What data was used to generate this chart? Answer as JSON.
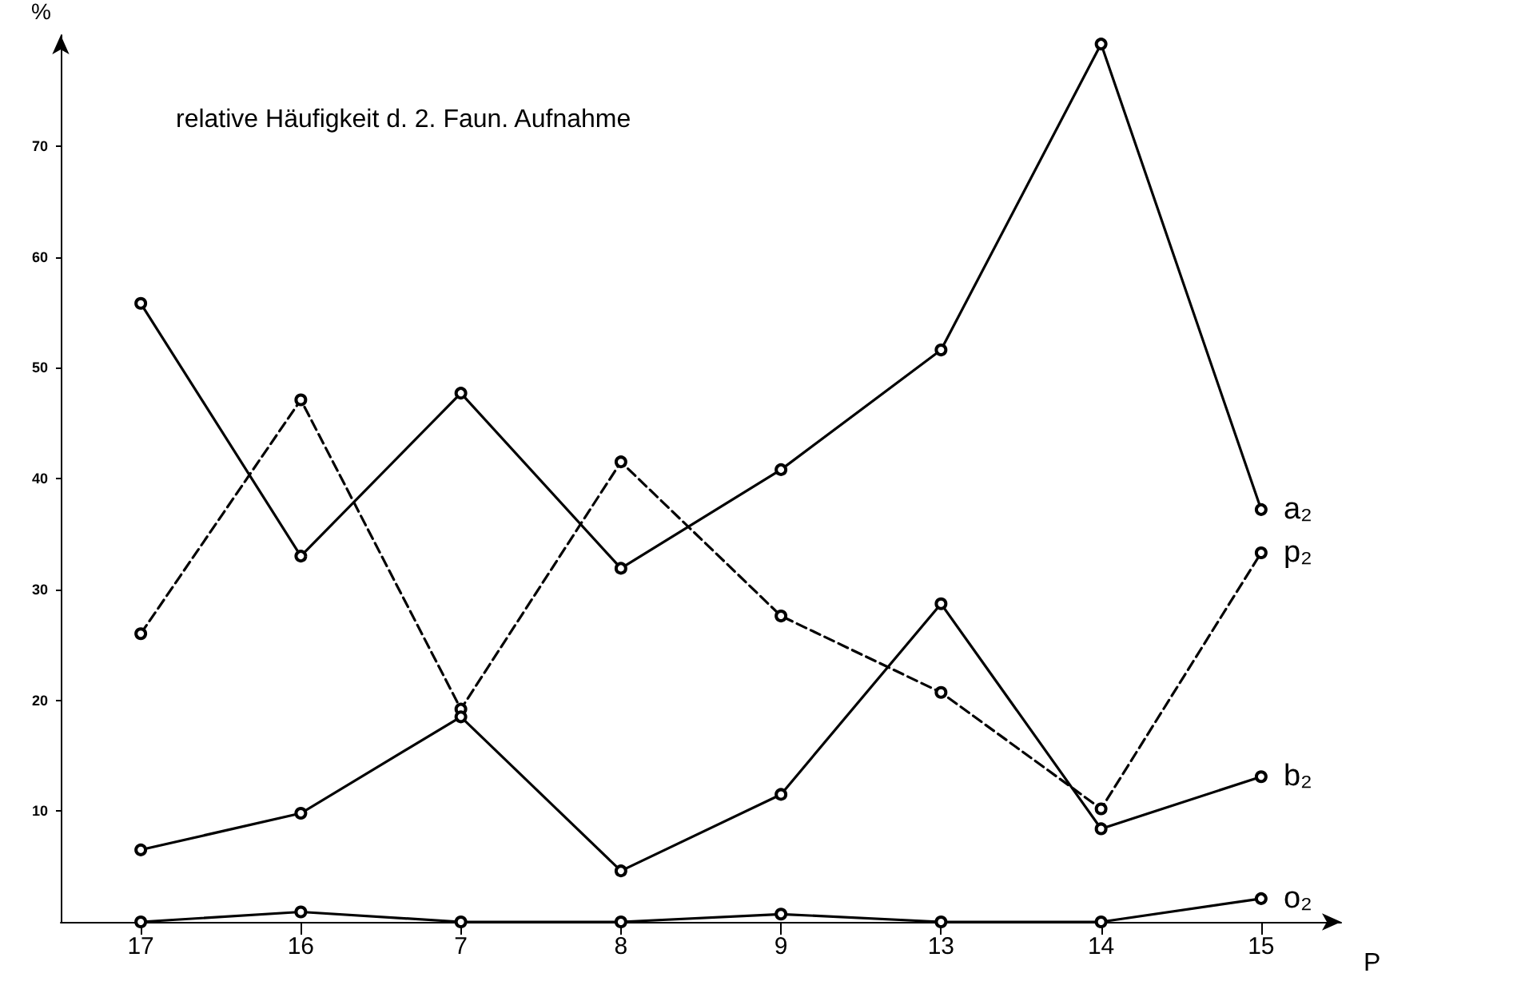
{
  "chart_data": {
    "type": "line",
    "title": "relative Häufigkeit d. 2. Faun. Aufnahme",
    "xlabel": "P",
    "ylabel": "%",
    "categories": [
      "17",
      "16",
      "7",
      "8",
      "9",
      "13",
      "14",
      "15"
    ],
    "series": [
      {
        "name": "a₂",
        "color": "#000000",
        "line_style": "solid",
        "values": [
          55.8,
          33.0,
          47.7,
          31.9,
          40.8,
          51.6,
          79.2,
          37.2
        ]
      },
      {
        "name": "p₂",
        "color": "#000000",
        "line_style": "dashed",
        "values": [
          26.0,
          47.1,
          19.2,
          41.5,
          27.6,
          20.7,
          10.2,
          33.3
        ]
      },
      {
        "name": "b₂",
        "color": "#000000",
        "line_style": "solid",
        "values": [
          6.5,
          9.8,
          18.5,
          4.6,
          11.5,
          28.7,
          8.4,
          13.1
        ]
      },
      {
        "name": "o₂",
        "color": "#000000",
        "line_style": "solid",
        "values": [
          0,
          0.9,
          0,
          0,
          0.7,
          0,
          0,
          2.1
        ]
      }
    ],
    "ylim": [
      0,
      80
    ],
    "yticks": [
      10,
      20,
      30,
      40,
      50,
      60,
      70
    ],
    "grid": false,
    "legend": false,
    "marker": "circle"
  }
}
